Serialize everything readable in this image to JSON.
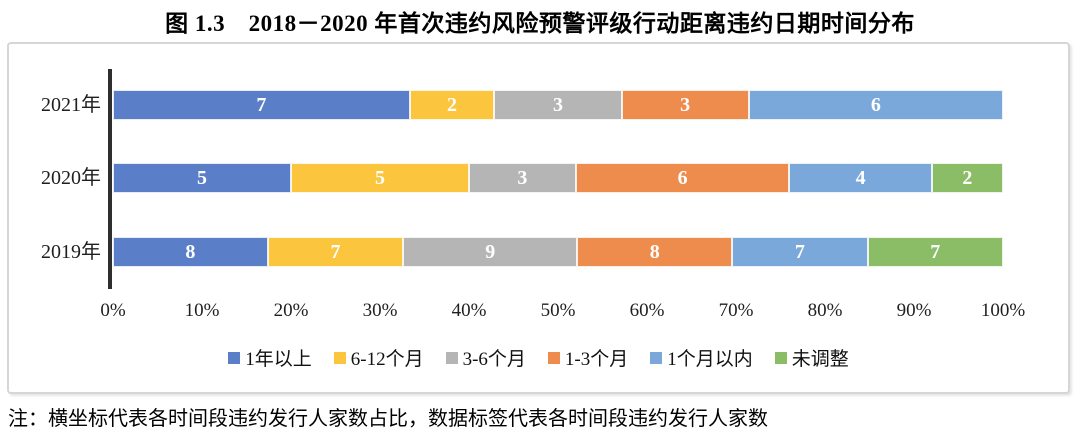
{
  "title": "图 1.3　2018－2020 年首次违约风险预警评级行动距离违约日期时间分布",
  "note": "注：横坐标代表各时间段违约发行人家数占比，数据标签代表各时间段违约发行人家数",
  "chart_data": {
    "type": "bar",
    "orientation": "horizontal",
    "stacked": true,
    "normalized": "100% stacked, x axis is share of issuers per period",
    "title": "图 1.3　2018－2020 年首次违约风险预警评级行动距离违约日期时间分布",
    "categories": [
      "2021年",
      "2020年",
      "2019年"
    ],
    "series": [
      {
        "name": "1年以上",
        "color": "#5B7EC9",
        "values": [
          7,
          5,
          8
        ]
      },
      {
        "name": "6-12个月",
        "color": "#FBC53D",
        "values": [
          2,
          5,
          7
        ]
      },
      {
        "name": "3-6个月",
        "color": "#B5B5B5",
        "values": [
          3,
          3,
          9
        ]
      },
      {
        "name": "1-3个月",
        "color": "#EE8C4E",
        "values": [
          3,
          6,
          8
        ]
      },
      {
        "name": "1个月以内",
        "color": "#7AA8DA",
        "values": [
          6,
          4,
          7
        ]
      },
      {
        "name": "未调整",
        "color": "#8BBC66",
        "values": [
          0,
          2,
          7
        ]
      }
    ],
    "x_ticks": [
      "0%",
      "10%",
      "20%",
      "30%",
      "40%",
      "50%",
      "60%",
      "70%",
      "80%",
      "90%",
      "100%"
    ],
    "xlim": [
      0,
      100
    ],
    "grid": false,
    "legend_position": "bottom",
    "data_label_color": "#FFFFFF"
  }
}
